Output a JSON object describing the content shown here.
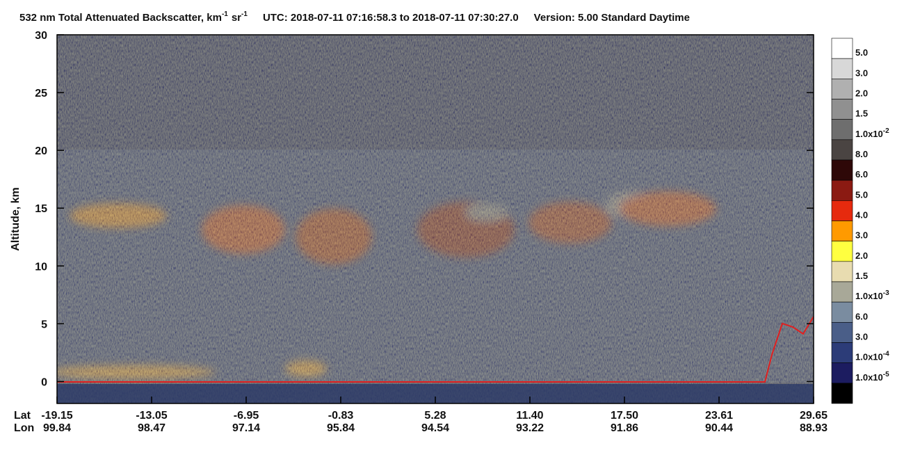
{
  "chart_data": {
    "type": "curtain",
    "title": {
      "main": "532 nm Total Attenuated Backscatter, km",
      "exp1": "-1",
      "unit2": "sr",
      "exp2": "-1",
      "utc": "UTC:  2018-07-11 07:16:58.3  to  2018-07-11 07:30:27.0",
      "version": "Version: 5.00  Standard  Daytime"
    },
    "y_label": "Altitude, km",
    "ylim": [
      -1.9,
      30
    ],
    "yticks": [
      0,
      5,
      10,
      15,
      20,
      25,
      30
    ],
    "x_rows": [
      {
        "name": "Lat",
        "labels": [
          "-19.15",
          "-13.05",
          "-6.95",
          "-0.83",
          "5.28",
          "11.40",
          "17.50",
          "23.61",
          "29.65"
        ]
      },
      {
        "name": "Lon",
        "labels": [
          "99.84",
          "98.47",
          "97.14",
          "95.84",
          "94.54",
          "93.22",
          "91.86",
          "90.44",
          "88.93"
        ]
      }
    ],
    "colorbar": {
      "colors": [
        "#ffffff",
        "#d8d8d8",
        "#b0b0b0",
        "#909090",
        "#6e6e6e",
        "#4a4442",
        "#2e0808",
        "#8b1a12",
        "#e62a0e",
        "#ff9a00",
        "#ffff40",
        "#e8dcb0",
        "#a8a898",
        "#7a8ca0",
        "#4a5e88",
        "#2c3c78",
        "#1c1c60",
        "#000000"
      ],
      "labels": [
        {
          "mantissa": "5.0"
        },
        {
          "mantissa": "3.0"
        },
        {
          "mantissa": "2.0"
        },
        {
          "mantissa": "1.5"
        },
        {
          "mantissa": "1.0x10",
          "exp": "-2"
        },
        {
          "mantissa": "8.0"
        },
        {
          "mantissa": "6.0"
        },
        {
          "mantissa": "5.0"
        },
        {
          "mantissa": "4.0"
        },
        {
          "mantissa": "3.0"
        },
        {
          "mantissa": "2.0"
        },
        {
          "mantissa": "1.5"
        },
        {
          "mantissa": "1.0x10",
          "exp": "-3"
        },
        {
          "mantissa": "6.0"
        },
        {
          "mantissa": "3.0"
        },
        {
          "mantissa": "1.0x10",
          "exp": "-4"
        },
        {
          "mantissa": "1.0x10",
          "exp": "-5"
        }
      ]
    }
  }
}
